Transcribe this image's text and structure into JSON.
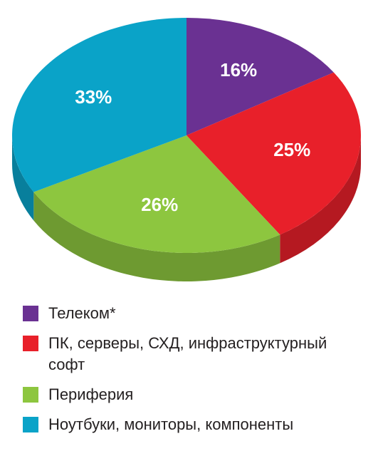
{
  "chart_data": {
    "type": "pie",
    "categories": [
      "Телеком*",
      "ПК, серверы, СХД, инфраструктурный софт",
      "Периферия",
      "Ноутбуки, мониторы, компоненты"
    ],
    "values": [
      16,
      25,
      26,
      33
    ],
    "value_labels": [
      "16%",
      "25%",
      "26%",
      "33%"
    ],
    "colors": [
      "#6a3192",
      "#e8202a",
      "#8dc63f",
      "#0aa3c8"
    ]
  }
}
